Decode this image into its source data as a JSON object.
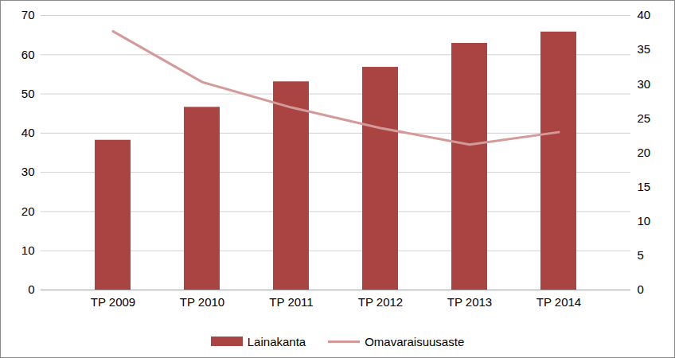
{
  "chart_data": {
    "type": "bar",
    "categories": [
      "TP 2009",
      "TP 2010",
      "TP 2011",
      "TP 2012",
      "TP 2013",
      "TP 2014"
    ],
    "series": [
      {
        "name": "Lainakanta",
        "type": "bar",
        "color": "#a94442",
        "values": [
          38.2,
          46.6,
          53.1,
          56.8,
          62.9,
          65.8
        ]
      },
      {
        "name": "Omavaraisuusaste",
        "type": "line",
        "color": "#d49a9a",
        "axis": "y2",
        "values": [
          37.7,
          30.3,
          26.6,
          23.6,
          21.2,
          23.0
        ]
      }
    ],
    "ylim": [
      0,
      70
    ],
    "yticks": [
      0,
      10,
      20,
      30,
      40,
      50,
      60,
      70
    ],
    "y2lim": [
      0,
      40
    ],
    "y2ticks": [
      0,
      5,
      10,
      15,
      20,
      25,
      30,
      35,
      40
    ],
    "grid": true,
    "legend": "bottom"
  }
}
